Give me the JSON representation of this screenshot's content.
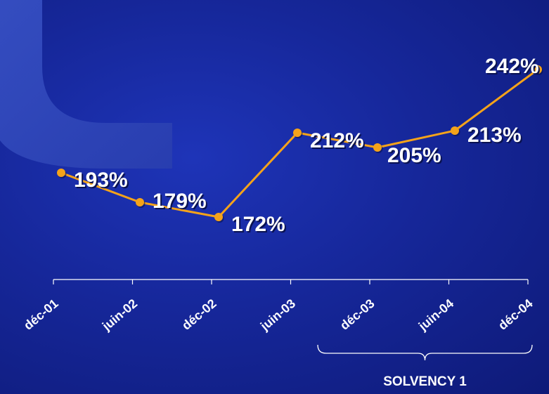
{
  "chart_data": {
    "type": "line",
    "categories": [
      "déc-01",
      "juin-02",
      "déc-02",
      "juin-03",
      "déc-03",
      "juin-04",
      "déc-04"
    ],
    "values": [
      193,
      179,
      172,
      212,
      205,
      213,
      242
    ],
    "data_labels": [
      "193%",
      "179%",
      "172%",
      "212%",
      "205%",
      "213%",
      "242%"
    ],
    "unit": "%",
    "ylim": [
      150,
      245
    ],
    "grid": false,
    "legend": "none",
    "line_color": "#f5a31a",
    "text_color": "#ffffff"
  },
  "annotation": {
    "label": "SOLVENCY 1",
    "categories_spanned": [
      "déc-03",
      "juin-04",
      "déc-04"
    ]
  }
}
